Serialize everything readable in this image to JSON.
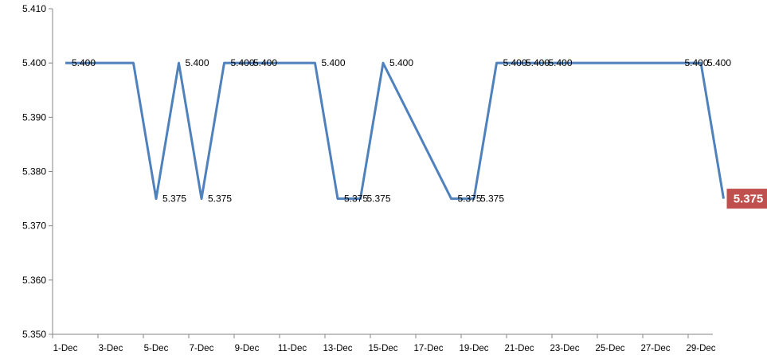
{
  "chart_data": {
    "type": "line",
    "title": "",
    "xlabel": "",
    "ylabel": "",
    "ylim": [
      5.35,
      5.41
    ],
    "y_ticks": [
      "5.350",
      "5.360",
      "5.370",
      "5.380",
      "5.390",
      "5.400",
      "5.410"
    ],
    "x_tick_labels": [
      "1-Dec",
      "3-Dec",
      "5-Dec",
      "7-Dec",
      "9-Dec",
      "11-Dec",
      "13-Dec",
      "15-Dec",
      "17-Dec",
      "19-Dec",
      "21-Dec",
      "23-Dec",
      "25-Dec",
      "27-Dec",
      "29-Dec"
    ],
    "grid": false,
    "legend": "none",
    "line_color": "#4F81BD",
    "last_value_badge_color": "#C0504D",
    "series": [
      {
        "points": [
          {
            "x": "1-Dec",
            "y": 5.4,
            "label": "5.400"
          },
          {
            "x": "2-Dec",
            "y": 5.4,
            "label": ""
          },
          {
            "x": "3-Dec",
            "y": 5.4,
            "label": ""
          },
          {
            "x": "4-Dec",
            "y": 5.4,
            "label": ""
          },
          {
            "x": "5-Dec",
            "y": 5.375,
            "label": "5.375"
          },
          {
            "x": "6-Dec",
            "y": 5.4,
            "label": "5.400"
          },
          {
            "x": "7-Dec",
            "y": 5.375,
            "label": "5.375"
          },
          {
            "x": "8-Dec",
            "y": 5.4,
            "label": "5.400"
          },
          {
            "x": "9-Dec",
            "y": 5.4,
            "label": "5.400"
          },
          {
            "x": "10-Dec",
            "y": 5.4,
            "label": ""
          },
          {
            "x": "11-Dec",
            "y": 5.4,
            "label": ""
          },
          {
            "x": "12-Dec",
            "y": 5.4,
            "label": "5.400"
          },
          {
            "x": "13-Dec",
            "y": 5.375,
            "label": "5.375"
          },
          {
            "x": "14-Dec",
            "y": 5.375,
            "label": "5.375"
          },
          {
            "x": "15-Dec",
            "y": 5.4,
            "label": "5.400"
          },
          {
            "x": "18-Dec",
            "y": 5.375,
            "label": "5.375"
          },
          {
            "x": "19-Dec",
            "y": 5.375,
            "label": "5.375"
          },
          {
            "x": "20-Dec",
            "y": 5.4,
            "label": "5.400"
          },
          {
            "x": "21-Dec",
            "y": 5.4,
            "label": "5.400"
          },
          {
            "x": "22-Dec",
            "y": 5.4,
            "label": "5.400"
          },
          {
            "x": "23-Dec",
            "y": 5.4,
            "label": ""
          },
          {
            "x": "24-Dec",
            "y": 5.4,
            "label": ""
          },
          {
            "x": "25-Dec",
            "y": 5.4,
            "label": ""
          },
          {
            "x": "26-Dec",
            "y": 5.4,
            "label": ""
          },
          {
            "x": "27-Dec",
            "y": 5.4,
            "label": ""
          },
          {
            "x": "28-Dec",
            "y": 5.4,
            "label": "5.400"
          },
          {
            "x": "29-Dec",
            "y": 5.4,
            "label": "5.400"
          },
          {
            "x": "30-Dec",
            "y": 5.375,
            "label": "5.375"
          }
        ]
      }
    ]
  }
}
